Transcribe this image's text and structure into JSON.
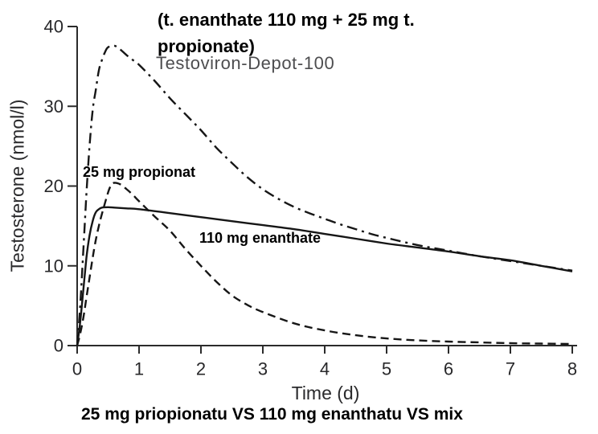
{
  "figure": {
    "annotations": {
      "mix_line1": "(t. enanthate 110 mg + 25 mg t.",
      "mix_line2": "propionate)",
      "mix_subtitle": "Testoviron-Depot-100",
      "propionat": "25 mg propionat",
      "enanthate": "110 mg enanthate",
      "caption": "25 mg priopionatu VS 110 mg enanthatu VS mix"
    },
    "colors": {
      "curve": "#161616",
      "axis": "#2b2b2b",
      "tick_text": "#28282a",
      "bold_text": "#000000",
      "subtitle_text": "#4d4d4f"
    }
  },
  "chart_data": {
    "type": "line",
    "title": "",
    "xlabel": "Time (d)",
    "ylabel": "Testosterone (nmol/l)",
    "xlim": [
      0,
      8
    ],
    "ylim": [
      0,
      40
    ],
    "xticks": [
      0,
      1,
      2,
      3,
      4,
      5,
      6,
      7,
      8
    ],
    "yticks": [
      0,
      10,
      20,
      30,
      40
    ],
    "grid": false,
    "legend": "none (labels annotated inline on plot)",
    "series": [
      {
        "name": "t. enanthate 110 mg + 25 mg t. propionate (Testoviron-Depot-100)",
        "style": "dashdot",
        "x": [
          0,
          0.05,
          0.1,
          0.15,
          0.2,
          0.25,
          0.3,
          0.35,
          0.4,
          0.45,
          0.5,
          0.6,
          0.7,
          0.8,
          0.9,
          1.0,
          1.25,
          1.5,
          1.75,
          2.0,
          2.25,
          2.5,
          2.75,
          3.0,
          3.25,
          3.5,
          3.75,
          4.0,
          4.25,
          4.5,
          4.75,
          5.0,
          5.5,
          6.0,
          6.5,
          7.0,
          7.5,
          8.0
        ],
        "y": [
          0,
          5,
          12,
          19,
          25,
          29.5,
          32,
          34.5,
          35.8,
          36.8,
          37.4,
          37.6,
          37.1,
          36.4,
          35.8,
          35.2,
          33.2,
          31.0,
          29.0,
          27.0,
          24.8,
          22.9,
          21.1,
          19.6,
          18.4,
          17.4,
          16.6,
          15.9,
          15.2,
          14.6,
          14.0,
          13.5,
          12.6,
          11.9,
          11.2,
          10.6,
          10.0,
          9.4
        ]
      },
      {
        "name": "25 mg propionat",
        "style": "dashed",
        "x": [
          0,
          0.05,
          0.1,
          0.15,
          0.2,
          0.25,
          0.3,
          0.35,
          0.4,
          0.5,
          0.55,
          0.6,
          0.7,
          0.8,
          0.9,
          1.0,
          1.25,
          1.5,
          1.75,
          2.0,
          2.25,
          2.5,
          2.75,
          3.0,
          3.5,
          4.0,
          4.5,
          5.0,
          5.5,
          6.0,
          6.5,
          7.0,
          7.5,
          8.0
        ],
        "y": [
          0,
          1.5,
          3.5,
          6.0,
          8.5,
          11.0,
          13.2,
          15.0,
          16.5,
          19.2,
          20.1,
          20.4,
          20.2,
          19.6,
          18.9,
          18.1,
          16.2,
          14.4,
          12.1,
          10.0,
          8.0,
          6.3,
          5.1,
          4.2,
          2.8,
          1.9,
          1.3,
          0.9,
          0.65,
          0.5,
          0.4,
          0.3,
          0.25,
          0.2
        ]
      },
      {
        "name": "110 mg enanthate",
        "style": "solid",
        "x": [
          0,
          0.05,
          0.1,
          0.15,
          0.2,
          0.25,
          0.3,
          0.35,
          0.4,
          0.5,
          0.6,
          0.8,
          1.0,
          1.5,
          2.0,
          2.5,
          3.0,
          3.5,
          4.0,
          4.5,
          5.0,
          5.5,
          6.0,
          6.5,
          7.0,
          7.5,
          8.0
        ],
        "y": [
          0,
          3,
          7,
          11,
          13.8,
          15.6,
          16.7,
          17.1,
          17.3,
          17.35,
          17.3,
          17.2,
          17.1,
          16.6,
          16.1,
          15.6,
          15.1,
          14.6,
          14.0,
          13.4,
          12.8,
          12.3,
          11.8,
          11.2,
          10.7,
          10.0,
          9.3
        ]
      }
    ]
  }
}
